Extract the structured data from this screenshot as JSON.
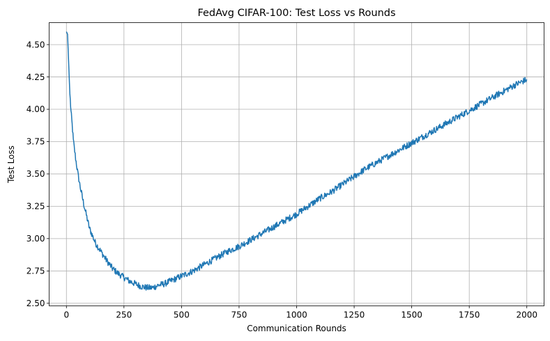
{
  "chart_data": {
    "type": "line",
    "title": "FedAvg CIFAR-100: Test Loss vs Rounds",
    "xlabel": "Communication Rounds",
    "ylabel": "Test Loss",
    "xlim": [
      -75,
      2075
    ],
    "ylim": [
      2.48,
      4.67
    ],
    "xticks": [
      0,
      250,
      500,
      750,
      1000,
      1250,
      1500,
      1750,
      2000
    ],
    "xtick_labels": [
      "0",
      "250",
      "500",
      "750",
      "1000",
      "1250",
      "1500",
      "1750",
      "2000"
    ],
    "yticks": [
      2.5,
      2.75,
      3.0,
      3.25,
      3.5,
      3.75,
      4.0,
      4.25,
      4.5
    ],
    "ytick_labels": [
      "2.50",
      "2.75",
      "3.00",
      "3.25",
      "3.50",
      "3.75",
      "4.00",
      "4.25",
      "4.50"
    ],
    "grid": true,
    "series": [
      {
        "color": "#1f77b4",
        "x": [
          0,
          5,
          10,
          15,
          20,
          25,
          30,
          40,
          50,
          60,
          75,
          100,
          125,
          150,
          175,
          200,
          225,
          250,
          275,
          300,
          325,
          350,
          375,
          400,
          425,
          450,
          500,
          550,
          600,
          650,
          700,
          750,
          800,
          850,
          900,
          950,
          1000,
          1050,
          1100,
          1150,
          1200,
          1250,
          1300,
          1350,
          1400,
          1450,
          1500,
          1550,
          1600,
          1650,
          1700,
          1750,
          1800,
          1850,
          1900,
          1950,
          2000
        ],
        "y": [
          4.6,
          4.58,
          4.35,
          4.12,
          3.98,
          3.88,
          3.76,
          3.62,
          3.5,
          3.4,
          3.27,
          3.08,
          2.97,
          2.9,
          2.83,
          2.77,
          2.73,
          2.7,
          2.67,
          2.65,
          2.63,
          2.62,
          2.62,
          2.64,
          2.65,
          2.67,
          2.71,
          2.75,
          2.8,
          2.85,
          2.9,
          2.94,
          2.99,
          3.04,
          3.09,
          3.14,
          3.19,
          3.25,
          3.31,
          3.36,
          3.42,
          3.48,
          3.54,
          3.59,
          3.64,
          3.69,
          3.74,
          3.79,
          3.84,
          3.89,
          3.94,
          3.99,
          4.04,
          4.09,
          4.14,
          4.19,
          4.23
        ]
      }
    ]
  }
}
